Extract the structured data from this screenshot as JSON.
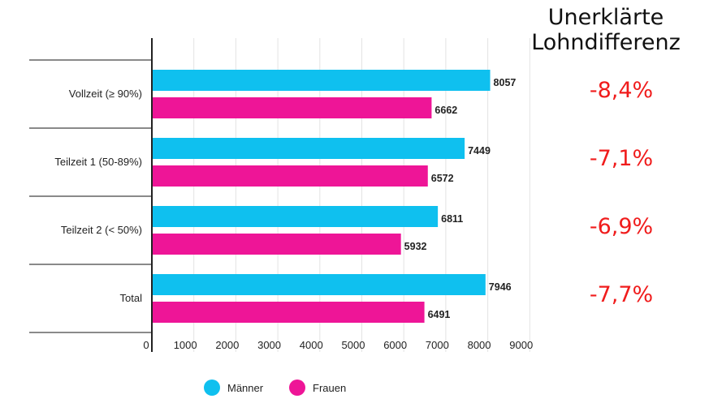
{
  "side_panel": {
    "title_line1": "Unerklärte",
    "title_line2": "Lohndifferenz",
    "differences": [
      "-8,4%",
      "-7,1%",
      "-6,9%",
      "-7,7%"
    ]
  },
  "chart_data": {
    "type": "bar",
    "orientation": "horizontal",
    "categories": [
      "Vollzeit (≥ 90%)",
      "Teilzeit 1 (50-89%)",
      "Teilzeit 2 (< 50%)",
      "Total"
    ],
    "series": [
      {
        "name": "Männer",
        "color": "#0fc0ef",
        "values": [
          8057,
          7449,
          6811,
          7946
        ]
      },
      {
        "name": "Frauen",
        "color": "#ee1597",
        "values": [
          6662,
          6572,
          5932,
          6491
        ]
      }
    ],
    "xticks": [
      "0",
      "1000",
      "2000",
      "3000",
      "4000",
      "5000",
      "6000",
      "7000",
      "8000",
      "9000"
    ],
    "xlim": [
      0,
      9000
    ],
    "grid": true,
    "legend_position": "bottom"
  }
}
